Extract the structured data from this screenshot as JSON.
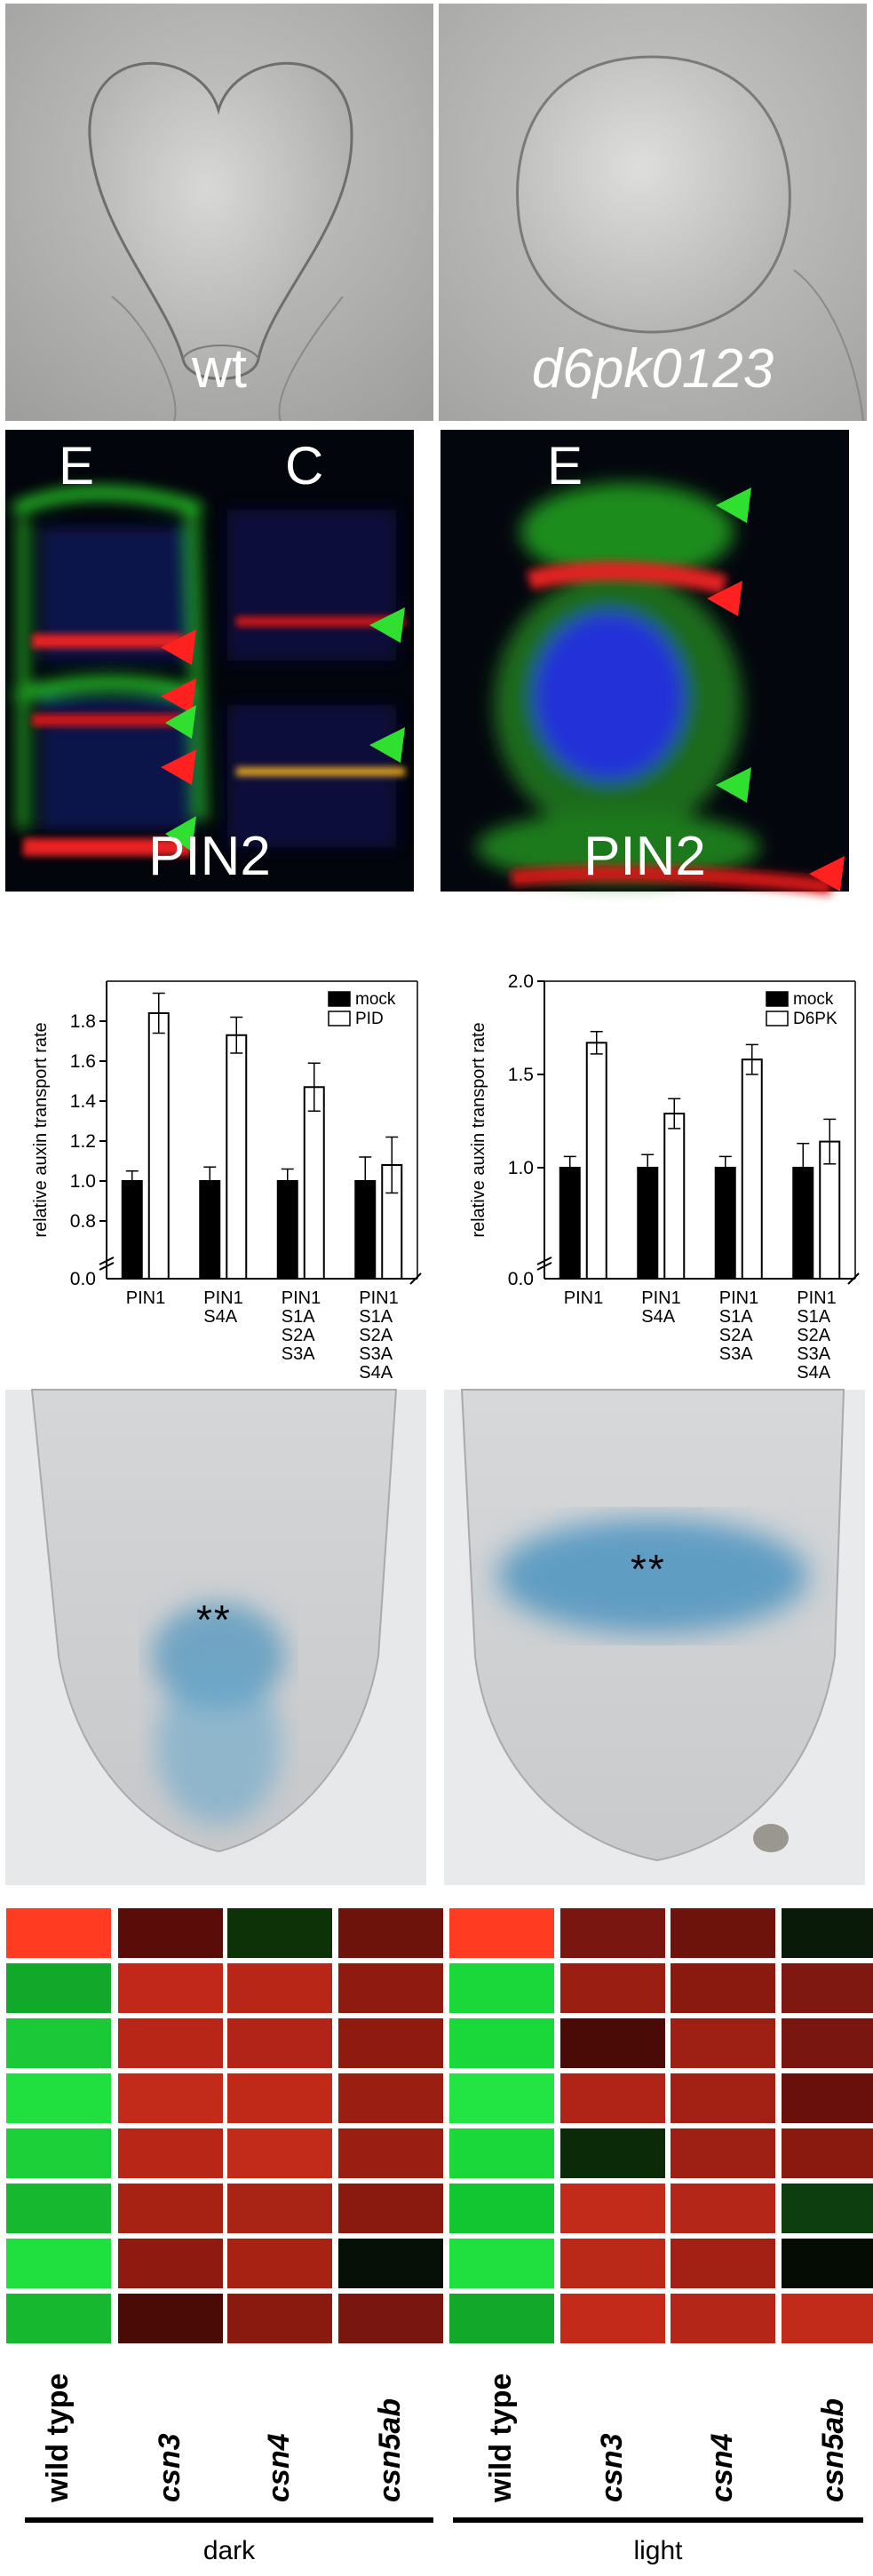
{
  "embryo_panels": [
    {
      "label": "wt",
      "italic": false
    },
    {
      "label": "d6pk0123",
      "italic": true
    }
  ],
  "confocal_panels": [
    {
      "top_labels": [
        "E",
        "C"
      ],
      "bottom_label": "PIN2"
    },
    {
      "top_labels": [
        "E"
      ],
      "bottom_label": "PIN2"
    }
  ],
  "chart_data": [
    {
      "type": "bar",
      "ylabel": "relative auxin transport rate",
      "ylim": [
        0.6,
        2.0
      ],
      "yticks": [
        "0.8",
        "1.0",
        "1.2",
        "1.4",
        "1.6",
        "1.8"
      ],
      "zero_label": "0.0",
      "legend_position": "top-right",
      "categories": [
        "PIN1",
        "PIN1\nS4A",
        "PIN1\nS1A\nS2A\nS3A",
        "PIN1\nS1A\nS2A\nS3A\nS4A"
      ],
      "series": [
        {
          "name": "mock",
          "color": "#000000",
          "values": [
            1.0,
            1.0,
            1.0,
            1.0
          ],
          "errors": [
            0.05,
            0.07,
            0.06,
            0.12
          ]
        },
        {
          "name": "PID",
          "color": "#ffffff",
          "values": [
            1.84,
            1.73,
            1.47,
            1.08
          ],
          "errors": [
            0.1,
            0.09,
            0.12,
            0.14
          ]
        }
      ]
    },
    {
      "type": "bar",
      "ylabel": "relative auxin transport rate",
      "ylim": [
        0.5,
        2.0
      ],
      "yticks": [
        "1.0",
        "1.5",
        "2.0"
      ],
      "zero_label": "0.0",
      "legend_position": "top-right",
      "categories": [
        "PIN1",
        "PIN1\nS4A",
        "PIN1\nS1A\nS2A\nS3A",
        "PIN1\nS1A\nS2A\nS3A\nS4A"
      ],
      "series": [
        {
          "name": "mock",
          "color": "#000000",
          "values": [
            1.0,
            1.0,
            1.0,
            1.0
          ],
          "errors": [
            0.06,
            0.07,
            0.06,
            0.13
          ]
        },
        {
          "name": "D6PK",
          "color": "#ffffff",
          "values": [
            1.67,
            1.29,
            1.58,
            1.14
          ],
          "errors": [
            0.06,
            0.08,
            0.08,
            0.12
          ]
        }
      ]
    },
    {
      "type": "heatmap",
      "columns": [
        {
          "label": "wild type",
          "italic": false
        },
        {
          "label": "csn3",
          "italic": true
        },
        {
          "label": "csn4",
          "italic": true
        },
        {
          "label": "csn5ab",
          "italic": true
        },
        {
          "label": "wild type",
          "italic": false
        },
        {
          "label": "csn3",
          "italic": true
        },
        {
          "label": "csn4",
          "italic": true
        },
        {
          "label": "csn5ab",
          "italic": true
        }
      ],
      "groups": [
        {
          "label": "dark",
          "columns": [
            0,
            1,
            2,
            3
          ]
        },
        {
          "label": "light",
          "columns": [
            4,
            5,
            6,
            7
          ]
        }
      ],
      "cells": [
        [
          "#ff3b22",
          "#5a0d08",
          "#0d3208",
          "#6e120c",
          "#ff3b22",
          "#7a1610",
          "#6e120c",
          "#0a1a08"
        ],
        [
          "#12a82a",
          "#c2281a",
          "#b82618",
          "#8e1a10",
          "#1ad83a",
          "#9a1e12",
          "#8a1a10",
          "#7e1810"
        ],
        [
          "#1ac838",
          "#b82618",
          "#b22418",
          "#8e1a10",
          "#1ad83a",
          "#4a0a06",
          "#9e2014",
          "#7a1610"
        ],
        [
          "#20e040",
          "#c22a1a",
          "#c02818",
          "#9a1e12",
          "#22e442",
          "#b02418",
          "#a22014",
          "#6a100c"
        ],
        [
          "#1cd03a",
          "#b82618",
          "#c22a1a",
          "#9a1e12",
          "#1ad83a",
          "#0a2a08",
          "#9e2014",
          "#8a1a10"
        ],
        [
          "#16b830",
          "#a82214",
          "#aa2416",
          "#8a1a10",
          "#12c632",
          "#c22a1a",
          "#b42618",
          "#0c3e10"
        ],
        [
          "#20e040",
          "#8e1a10",
          "#a82214",
          "#061006",
          "#20e040",
          "#ba2818",
          "#a22014",
          "#040c04"
        ],
        [
          "#16b830",
          "#4a0a06",
          "#8a1a10",
          "#7a1610",
          "#12a82a",
          "#c42a1a",
          "#b42618",
          "#c22a1a"
        ]
      ]
    }
  ],
  "root_panels": [
    {
      "annotation": "**"
    },
    {
      "annotation": "**"
    }
  ]
}
